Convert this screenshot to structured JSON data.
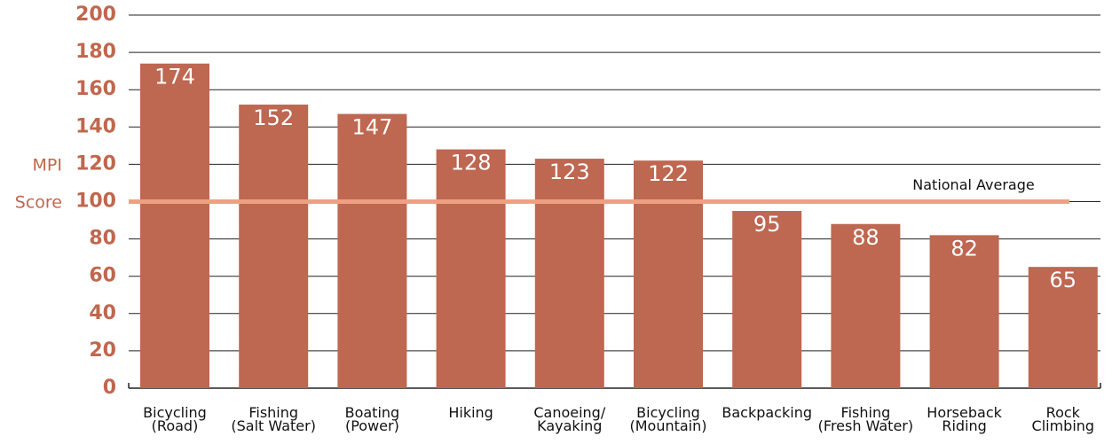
{
  "chart_data": {
    "type": "bar",
    "y_axis_label": [
      "MPI",
      "Score"
    ],
    "categories": [
      "Bicycling\n(Road)",
      "Fishing\n(Salt Water)",
      "Boating\n(Power)",
      "Hiking",
      "Canoeing/\nKayaking",
      "Bicycling\n(Mountain)",
      "Backpacking",
      "Fishing\n(Fresh Water)",
      "Horseback\nRiding",
      "Rock\nClimbing"
    ],
    "values": [
      174,
      152,
      147,
      128,
      123,
      122,
      95,
      88,
      82,
      65
    ],
    "color": "#be6751",
    "ylim": [
      0,
      200
    ],
    "yticks": [
      0,
      20,
      40,
      60,
      80,
      100,
      120,
      140,
      160,
      180,
      200
    ],
    "grid": true,
    "reference_line": {
      "value": 100,
      "label": "National Average",
      "color": "#f0a082"
    }
  }
}
